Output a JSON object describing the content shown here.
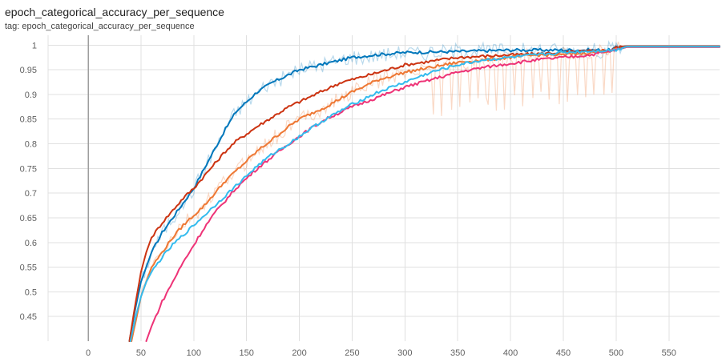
{
  "chart_data": {
    "type": "line",
    "title": "epoch_categorical_accuracy_per_sequence",
    "subtitle": "tag: epoch_categorical_accuracy_per_sequence",
    "xlim": [
      -38,
      598
    ],
    "ylim": [
      0.4,
      1.02
    ],
    "x_ticks": [
      0,
      50,
      100,
      150,
      200,
      250,
      300,
      350,
      400,
      450,
      500,
      550
    ],
    "y_ticks": [
      0.45,
      0.5,
      0.55,
      0.6,
      0.65,
      0.7,
      0.75,
      0.8,
      0.85,
      0.9,
      0.95,
      1
    ],
    "y_tick_labels": [
      "0.45",
      "0.5",
      "0.55",
      "0.6",
      "0.65",
      "0.7",
      "0.75",
      "0.8",
      "0.85",
      "0.9",
      "0.95",
      "1"
    ],
    "grid": true,
    "series": [
      {
        "color": "#0077bb",
        "x": [
          39,
          45,
          50,
          55,
          60,
          70,
          80,
          90,
          100,
          110,
          120,
          130,
          140,
          150,
          160,
          175,
          190,
          200,
          210,
          220,
          230,
          240,
          250,
          270,
          300,
          350,
          400,
          450,
          495,
          500,
          510,
          550,
          598
        ],
        "y": [
          0.4,
          0.47,
          0.52,
          0.55,
          0.58,
          0.62,
          0.65,
          0.68,
          0.71,
          0.75,
          0.79,
          0.83,
          0.865,
          0.885,
          0.905,
          0.925,
          0.94,
          0.95,
          0.955,
          0.96,
          0.965,
          0.97,
          0.975,
          0.98,
          0.985,
          0.987,
          0.99,
          0.99,
          0.99,
          0.995,
          0.998,
          0.998,
          0.998
        ]
      },
      {
        "color": "#cc3311",
        "x": [
          39,
          45,
          50,
          55,
          60,
          70,
          80,
          90,
          100,
          110,
          120,
          130,
          140,
          150,
          160,
          175,
          190,
          200,
          210,
          220,
          230,
          240,
          250,
          275,
          300,
          350,
          400,
          450,
          495,
          500,
          510,
          550,
          598
        ],
        "y": [
          0.4,
          0.48,
          0.54,
          0.58,
          0.61,
          0.64,
          0.665,
          0.69,
          0.71,
          0.735,
          0.76,
          0.785,
          0.805,
          0.82,
          0.835,
          0.855,
          0.875,
          0.885,
          0.895,
          0.905,
          0.915,
          0.925,
          0.93,
          0.945,
          0.96,
          0.975,
          0.98,
          0.985,
          0.99,
          0.995,
          0.998,
          0.998,
          0.998
        ]
      },
      {
        "color": "#ee7733",
        "x": [
          41,
          45,
          50,
          55,
          60,
          70,
          80,
          90,
          100,
          110,
          120,
          130,
          140,
          150,
          160,
          175,
          190,
          200,
          210,
          225,
          250,
          275,
          300,
          325,
          350,
          375,
          400,
          425,
          450,
          475,
          500,
          510,
          550,
          598
        ],
        "y": [
          0.4,
          0.44,
          0.49,
          0.52,
          0.55,
          0.58,
          0.61,
          0.635,
          0.655,
          0.675,
          0.7,
          0.725,
          0.745,
          0.765,
          0.785,
          0.81,
          0.835,
          0.85,
          0.86,
          0.875,
          0.905,
          0.93,
          0.945,
          0.955,
          0.965,
          0.97,
          0.975,
          0.98,
          0.98,
          0.985,
          0.99,
          0.996,
          0.996,
          0.996
        ]
      },
      {
        "color": "#ee3377",
        "x": [
          55,
          60,
          70,
          80,
          90,
          100,
          110,
          120,
          130,
          140,
          150,
          160,
          175,
          190,
          200,
          210,
          225,
          250,
          275,
          300,
          325,
          350,
          375,
          400,
          425,
          450,
          475,
          500,
          510,
          550,
          598
        ],
        "y": [
          0.4,
          0.43,
          0.48,
          0.52,
          0.56,
          0.595,
          0.63,
          0.66,
          0.685,
          0.71,
          0.73,
          0.75,
          0.775,
          0.8,
          0.815,
          0.83,
          0.85,
          0.875,
          0.895,
          0.915,
          0.93,
          0.945,
          0.955,
          0.963,
          0.97,
          0.975,
          0.98,
          0.99,
          0.996,
          0.996,
          0.996
        ]
      },
      {
        "color": "#33bbee",
        "x": [
          40,
          45,
          50,
          55,
          60,
          70,
          80,
          90,
          100,
          110,
          120,
          130,
          140,
          150,
          160,
          175,
          190,
          200,
          210,
          225,
          250,
          275,
          300,
          325,
          350,
          375,
          400,
          425,
          450,
          475,
          500,
          510,
          550,
          598
        ],
        "y": [
          0.4,
          0.45,
          0.49,
          0.52,
          0.54,
          0.57,
          0.595,
          0.615,
          0.635,
          0.655,
          0.675,
          0.695,
          0.715,
          0.735,
          0.755,
          0.78,
          0.8,
          0.815,
          0.83,
          0.85,
          0.88,
          0.905,
          0.925,
          0.945,
          0.96,
          0.97,
          0.975,
          0.98,
          0.985,
          0.988,
          0.99,
          0.997,
          0.997,
          0.997
        ]
      }
    ]
  }
}
